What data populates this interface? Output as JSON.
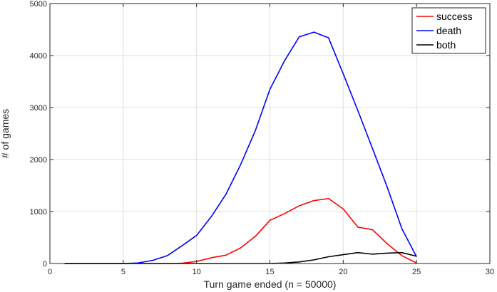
{
  "chart_data": {
    "type": "line",
    "title": "",
    "xlabel": "Turn game ended (n = 50000)",
    "ylabel": "# of games",
    "xlim": [
      0,
      30
    ],
    "ylim": [
      0,
      5000
    ],
    "xticks": [
      0,
      5,
      10,
      15,
      20,
      25,
      30
    ],
    "yticks": [
      0,
      1000,
      2000,
      3000,
      4000,
      5000
    ],
    "grid": true,
    "legend_position": "top-right",
    "x": [
      1,
      2,
      3,
      4,
      5,
      6,
      7,
      8,
      9,
      10,
      11,
      12,
      13,
      14,
      15,
      16,
      17,
      18,
      19,
      20,
      21,
      22,
      23,
      24,
      25
    ],
    "series": [
      {
        "name": "success",
        "color": "#ff0000",
        "values": [
          0,
          0,
          0,
          0,
          0,
          0,
          0,
          0,
          5,
          40,
          110,
          160,
          300,
          520,
          830,
          960,
          1110,
          1210,
          1250,
          1050,
          700,
          650,
          380,
          150,
          10
        ]
      },
      {
        "name": "death",
        "color": "#0000ff",
        "values": [
          0,
          0,
          0,
          0,
          0,
          10,
          60,
          150,
          340,
          540,
          900,
          1330,
          1900,
          2550,
          3350,
          3900,
          4360,
          4450,
          4340,
          3650,
          2940,
          2210,
          1470,
          670,
          130
        ]
      },
      {
        "name": "both",
        "color": "#000000",
        "values": [
          0,
          0,
          0,
          0,
          0,
          0,
          0,
          0,
          0,
          0,
          0,
          0,
          0,
          0,
          0,
          10,
          30,
          70,
          130,
          170,
          210,
          180,
          200,
          210,
          140
        ]
      }
    ]
  }
}
